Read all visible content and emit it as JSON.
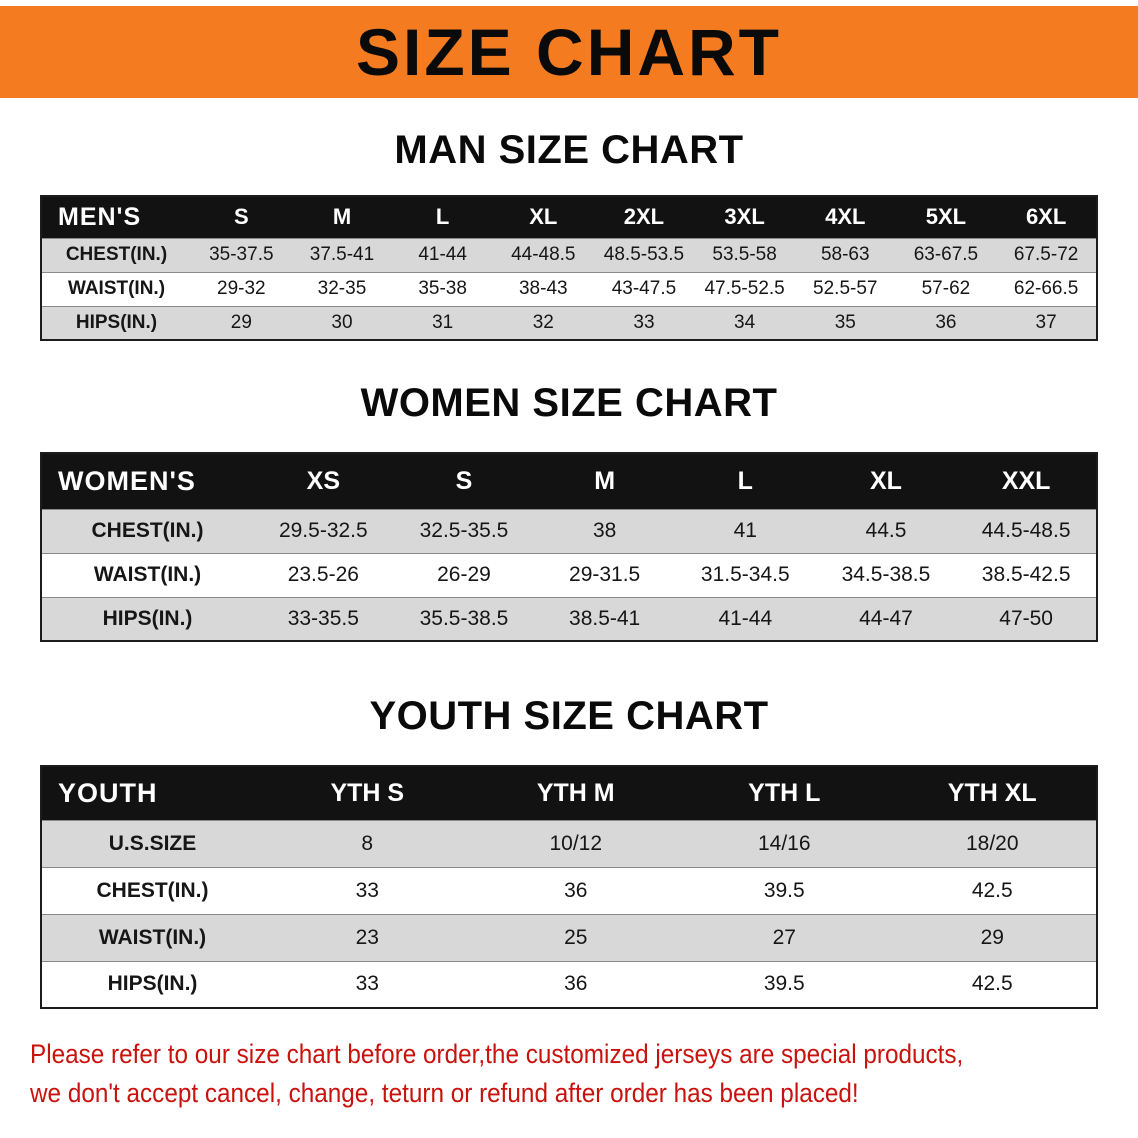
{
  "banner": {
    "title": "SIZE CHART"
  },
  "colors": {
    "banner_bg": "#F47B20",
    "table_header_bg": "#121212",
    "row_alt_bg": "#D8D8D8",
    "notice_red": "#C9120E"
  },
  "men": {
    "heading": "MAN SIZE CHART",
    "table": {
      "header": [
        "MEN'S",
        "S",
        "M",
        "L",
        "XL",
        "2XL",
        "3XL",
        "4XL",
        "5XL",
        "6XL"
      ],
      "rows": [
        [
          "CHEST(IN.)",
          "35-37.5",
          "37.5-41",
          "41-44",
          "44-48.5",
          "48.5-53.5",
          "53.5-58",
          "58-63",
          "63-67.5",
          "67.5-72"
        ],
        [
          "WAIST(IN.)",
          "29-32",
          "32-35",
          "35-38",
          "38-43",
          "43-47.5",
          "47.5-52.5",
          "52.5-57",
          "57-62",
          "62-66.5"
        ],
        [
          "HIPS(IN.)",
          "29",
          "30",
          "31",
          "32",
          "33",
          "34",
          "35",
          "36",
          "37"
        ]
      ]
    }
  },
  "women": {
    "heading": "WOMEN SIZE CHART",
    "table": {
      "header": [
        "WOMEN'S",
        "XS",
        "S",
        "M",
        "L",
        "XL",
        "XXL"
      ],
      "rows": [
        [
          "CHEST(IN.)",
          "29.5-32.5",
          "32.5-35.5",
          "38",
          "41",
          "44.5",
          "44.5-48.5"
        ],
        [
          "WAIST(IN.)",
          "23.5-26",
          "26-29",
          "29-31.5",
          "31.5-34.5",
          "34.5-38.5",
          "38.5-42.5"
        ],
        [
          "HIPS(IN.)",
          "33-35.5",
          "35.5-38.5",
          "38.5-41",
          "41-44",
          "44-47",
          "47-50"
        ]
      ]
    }
  },
  "youth": {
    "heading": "YOUTH SIZE CHART",
    "table": {
      "header": [
        "YOUTH",
        "YTH S",
        "YTH M",
        "YTH L",
        "YTH XL"
      ],
      "rows": [
        [
          "U.S.SIZE",
          "8",
          "10/12",
          "14/16",
          "18/20"
        ],
        [
          "CHEST(IN.)",
          "33",
          "36",
          "39.5",
          "42.5"
        ],
        [
          "WAIST(IN.)",
          "23",
          "25",
          "27",
          "29"
        ],
        [
          "HIPS(IN.)",
          "33",
          "36",
          "39.5",
          "42.5"
        ]
      ]
    }
  },
  "notice": {
    "line1": "Please refer to our size chart before order,the customized jerseys are special products,",
    "line2": "we don't accept cancel, change, teturn or refund after order has been placed!"
  }
}
